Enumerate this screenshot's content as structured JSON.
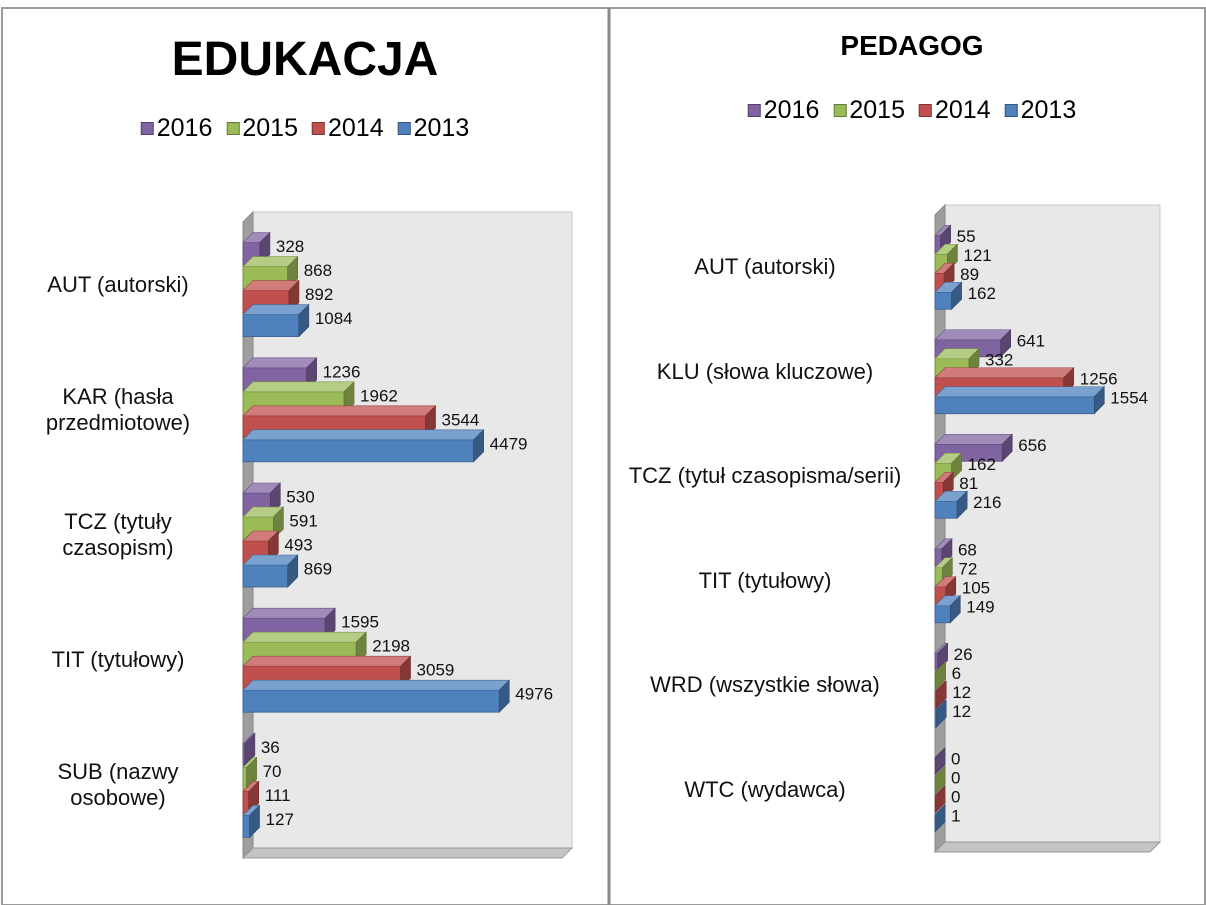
{
  "chart_data": [
    {
      "type": "bar",
      "orientation": "horizontal",
      "title": "EDUKACJA",
      "categories": [
        "AUT (autorski)",
        "KAR (hasła przedmiotowe)",
        "TCZ (tytuły czasopism)",
        "TIT (tytułowy)",
        "SUB (nazwy osobowe)"
      ],
      "series": [
        {
          "name": "2016",
          "color": "#8064a2",
          "values": [
            328,
            1236,
            530,
            1595,
            36
          ]
        },
        {
          "name": "2015",
          "color": "#9bbb59",
          "values": [
            868,
            1962,
            591,
            2198,
            70
          ]
        },
        {
          "name": "2014",
          "color": "#c0504d",
          "values": [
            892,
            3544,
            493,
            3059,
            111
          ]
        },
        {
          "name": "2013",
          "color": "#4f81bd",
          "values": [
            1084,
            4479,
            869,
            4976,
            127
          ]
        }
      ],
      "xlim": [
        0,
        6000
      ],
      "legend": "top"
    },
    {
      "type": "bar",
      "orientation": "horizontal",
      "title": "PEDAGOG",
      "categories": [
        "AUT (autorski)",
        "KLU (słowa kluczowe)",
        "TCZ (tytuł czasopisma/serii)",
        "TIT (tytułowy)",
        "WRD (wszystkie słowa)",
        "WTC (wydawca)"
      ],
      "series": [
        {
          "name": "2016",
          "color": "#8064a2",
          "values": [
            55,
            641,
            656,
            68,
            26,
            0
          ]
        },
        {
          "name": "2015",
          "color": "#9bbb59",
          "values": [
            121,
            332,
            162,
            72,
            6,
            0
          ]
        },
        {
          "name": "2014",
          "color": "#c0504d",
          "values": [
            89,
            1256,
            81,
            105,
            12,
            0
          ]
        },
        {
          "name": "2013",
          "color": "#4f81bd",
          "values": [
            162,
            1554,
            216,
            149,
            12,
            1
          ]
        }
      ],
      "xlim": [
        0,
        2000
      ],
      "legend": "top"
    }
  ]
}
